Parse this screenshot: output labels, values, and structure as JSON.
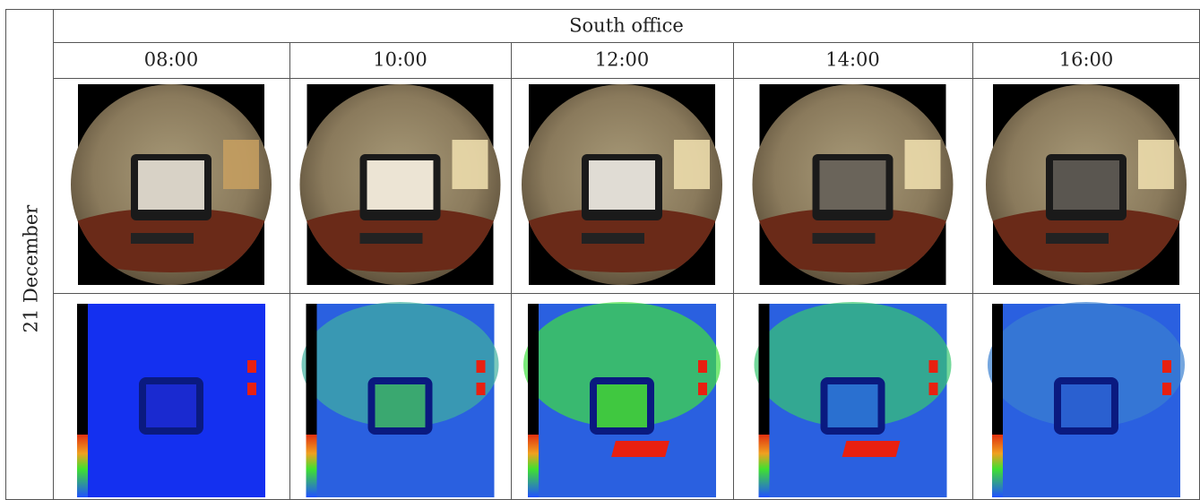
{
  "table": {
    "row_label": "21 December",
    "header": "South office",
    "columns": [
      "08:00",
      "10:00",
      "12:00",
      "14:00",
      "16:00"
    ]
  }
}
